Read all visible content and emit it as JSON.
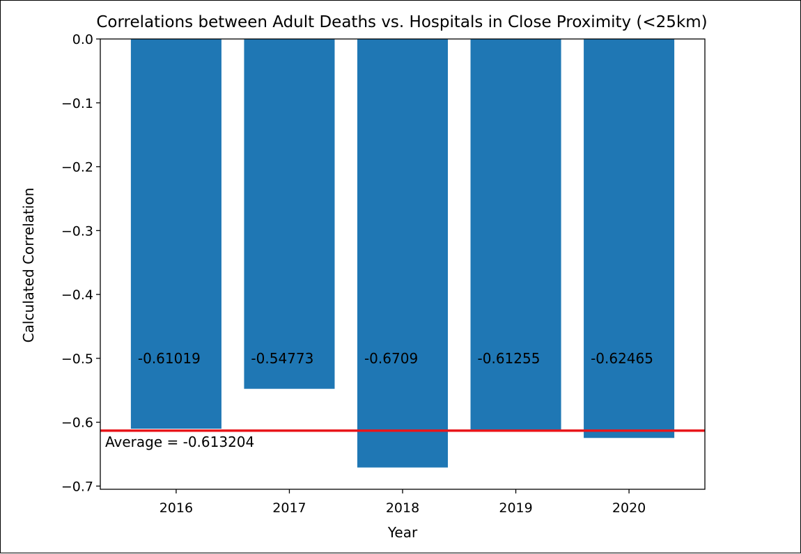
{
  "chart_data": {
    "type": "bar",
    "title": "Correlations between Adult Deaths vs. Hospitals in Close Proximity (<25km)",
    "xlabel": "Year",
    "ylabel": "Calculated Correlation",
    "categories": [
      "2016",
      "2017",
      "2018",
      "2019",
      "2020"
    ],
    "values": [
      -0.61019,
      -0.54773,
      -0.6709,
      -0.61255,
      -0.62465
    ],
    "data_labels": [
      "-0.61019",
      "-0.54773",
      "-0.6709",
      "-0.61255",
      "-0.62465"
    ],
    "data_label_y": -0.5,
    "ylim": [
      -0.705,
      0.0
    ],
    "yticks": [
      0.0,
      -0.1,
      -0.2,
      -0.3,
      -0.4,
      -0.5,
      -0.6,
      -0.7
    ],
    "ytick_labels": [
      "0.0",
      "−0.1",
      "−0.2",
      "−0.3",
      "−0.4",
      "−0.5",
      "−0.6",
      "−0.7"
    ],
    "average": {
      "value": -0.613204,
      "label": "Average = -0.613204",
      "color": "#e8161b"
    },
    "bar_color": "#1f77b4",
    "grid": false,
    "legend": "none"
  }
}
